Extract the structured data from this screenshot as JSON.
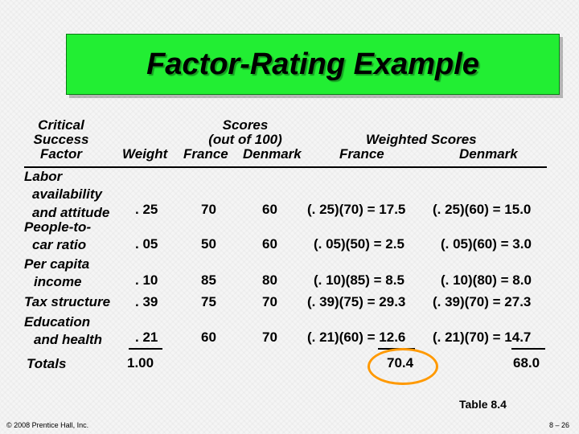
{
  "title": "Factor-Rating Example",
  "header": {
    "factor_col": [
      "Critical",
      "Success",
      "Factor"
    ],
    "scores": [
      "Scores",
      "(out of 100)"
    ],
    "weight": "Weight",
    "france": "France",
    "denmark": "Denmark",
    "weighted": "Weighted Scores",
    "w_france": "France",
    "w_denmark": "Denmark"
  },
  "rows": [
    {
      "factor": [
        "Labor",
        "availability",
        "and attitude"
      ],
      "weight": ". 25",
      "france": "70",
      "denmark": "60",
      "wf": "(. 25)(70) = 17.5",
      "wd": "(. 25)(60) = 15.0"
    },
    {
      "factor": [
        "People-to-",
        "car ratio"
      ],
      "weight": ". 05",
      "france": "50",
      "denmark": "60",
      "wf": "(. 05)(50) = 2.5",
      "wd": "(. 05)(60) = 3.0"
    },
    {
      "factor": [
        "Per capita",
        "income"
      ],
      "weight": ". 10",
      "france": "85",
      "denmark": "80",
      "wf": "(. 10)(85) = 8.5",
      "wd": "(. 10)(80) = 8.0"
    },
    {
      "factor": [
        "Tax structure"
      ],
      "weight": ". 39",
      "france": "75",
      "denmark": "70",
      "wf": "(. 39)(75) = 29.3",
      "wd": "(. 39)(70) = 27.3"
    },
    {
      "factor": [
        "Education",
        "and health"
      ],
      "weight": ". 21",
      "france": "60",
      "denmark": "70",
      "wf": "(. 21)(60) = 12.6",
      "wd": "(. 21)(70) = 14.7"
    }
  ],
  "totals": {
    "label": "Totals",
    "weight": "1.00",
    "france": "70.4",
    "denmark": "68.0"
  },
  "caption": "Table 8.4",
  "footer": {
    "copyright": "© 2008 Prentice Hall, Inc.",
    "page": "8 – 26"
  },
  "colors": {
    "title_bg": "#22ee33",
    "highlight": "#ff9900"
  }
}
